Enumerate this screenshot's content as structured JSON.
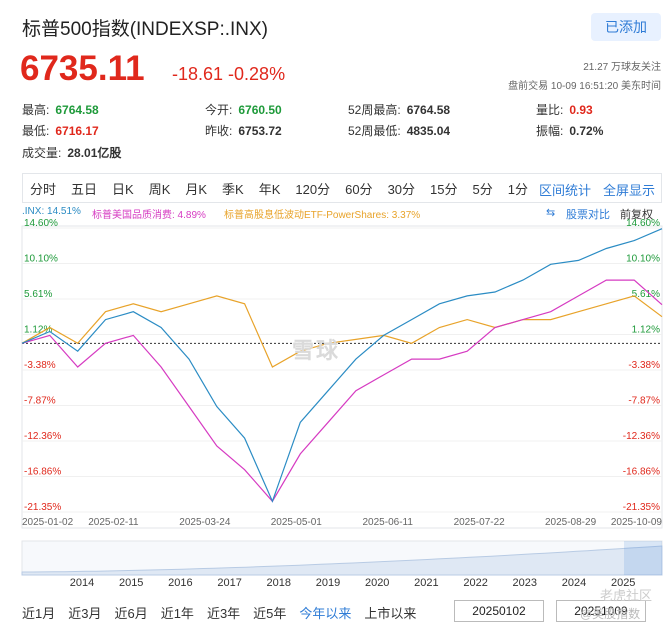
{
  "header": {
    "title": "标普500指数(INDEXSP:.INX)",
    "follow_button": "已添加",
    "followers": "21.27 万球友关注",
    "status": "盘前交易 10-09 16:51:20 美东时间",
    "price": "6735.11",
    "change": "-18.61 -0.28%"
  },
  "stats": {
    "high_label": "最高:",
    "high": "6764.58",
    "low_label": "最低:",
    "low": "6716.17",
    "volume_label": "成交量:",
    "volume": "28.01亿股",
    "open_label": "今开:",
    "open": "6760.50",
    "prev_label": "昨收:",
    "prev": "6753.72",
    "w52h_label": "52周最高:",
    "w52h": "6764.58",
    "w52l_label": "52周最低:",
    "w52l": "4835.04",
    "ratio_label": "量比:",
    "ratio": "0.93",
    "amp_label": "振幅:",
    "amp": "0.72%"
  },
  "tabs": [
    "分时",
    "五日",
    "日K",
    "周K",
    "月K",
    "季K",
    "年K",
    "120分",
    "60分",
    "30分",
    "15分",
    "5分",
    "1分"
  ],
  "tab_actions": {
    "interval_stats": "区间统计",
    "fullscreen": "全屏显示"
  },
  "legend": {
    "inx": ".INX: 14.51%",
    "quality": "标普美国品质消费: 4.89%",
    "lowvol": "标普高股息低波动ETF-PowerShares: 3.37%",
    "compare": "股票对比",
    "adjust": "前复权"
  },
  "colors": {
    "inx": "#2b8cc4",
    "quality": "#d63bc2",
    "lowvol": "#e8a32a",
    "green": "#1e9a3a",
    "red": "#e0281c",
    "accent": "#2f7cd6"
  },
  "chart_data": {
    "type": "line",
    "y_ticks": [
      "14.60%",
      "10.10%",
      "5.61%",
      "1.12%",
      "-3.38%",
      "-7.87%",
      "-12.36%",
      "-16.86%",
      "-21.35%"
    ],
    "y_values": [
      14.6,
      10.1,
      5.61,
      1.12,
      -3.38,
      -7.87,
      -12.36,
      -16.86,
      -21.35
    ],
    "x_ticks": [
      "2025-01-02",
      "2025-02-11",
      "2025-03-24",
      "2025-05-01",
      "2025-06-11",
      "2025-07-22",
      "2025-08-29",
      "2025-10-09"
    ],
    "series": [
      {
        "name": ".INX",
        "values": [
          0,
          1.5,
          -1,
          3,
          4,
          2,
          -2,
          -8,
          -12,
          -20,
          -10,
          -6,
          -2,
          1,
          3,
          5,
          6,
          6.5,
          8,
          10,
          10.5,
          12,
          13,
          14.51
        ]
      },
      {
        "name": "标普美国品质消费",
        "values": [
          0,
          1,
          -3,
          0,
          1,
          -3,
          -8,
          -13,
          -16,
          -20,
          -14,
          -10,
          -6,
          -4,
          -2,
          -2,
          -1,
          2,
          3,
          4,
          6,
          8,
          8,
          4.89
        ]
      },
      {
        "name": "标普高股息低波动ETF-PowerShares",
        "values": [
          0,
          2,
          0,
          4,
          5,
          4,
          5,
          6,
          5,
          -3,
          -1,
          0,
          0.5,
          1,
          0,
          2,
          3,
          2,
          3,
          3,
          4,
          5,
          6,
          3.37
        ]
      }
    ],
    "nav_years": [
      "2014",
      "2015",
      "2016",
      "2017",
      "2018",
      "2019",
      "2020",
      "2021",
      "2022",
      "2023",
      "2024",
      "2025"
    ]
  },
  "range_buttons": [
    "近1月",
    "近3月",
    "近6月",
    "近1年",
    "近3年",
    "近5年",
    "今年以来",
    "上市以来"
  ],
  "range_active": "今年以来",
  "date_from": "20250102",
  "date_to": "20251009",
  "watermark": "雪球",
  "watermark_corner": "老虎社区",
  "watermark_corner2": "@美股指数"
}
